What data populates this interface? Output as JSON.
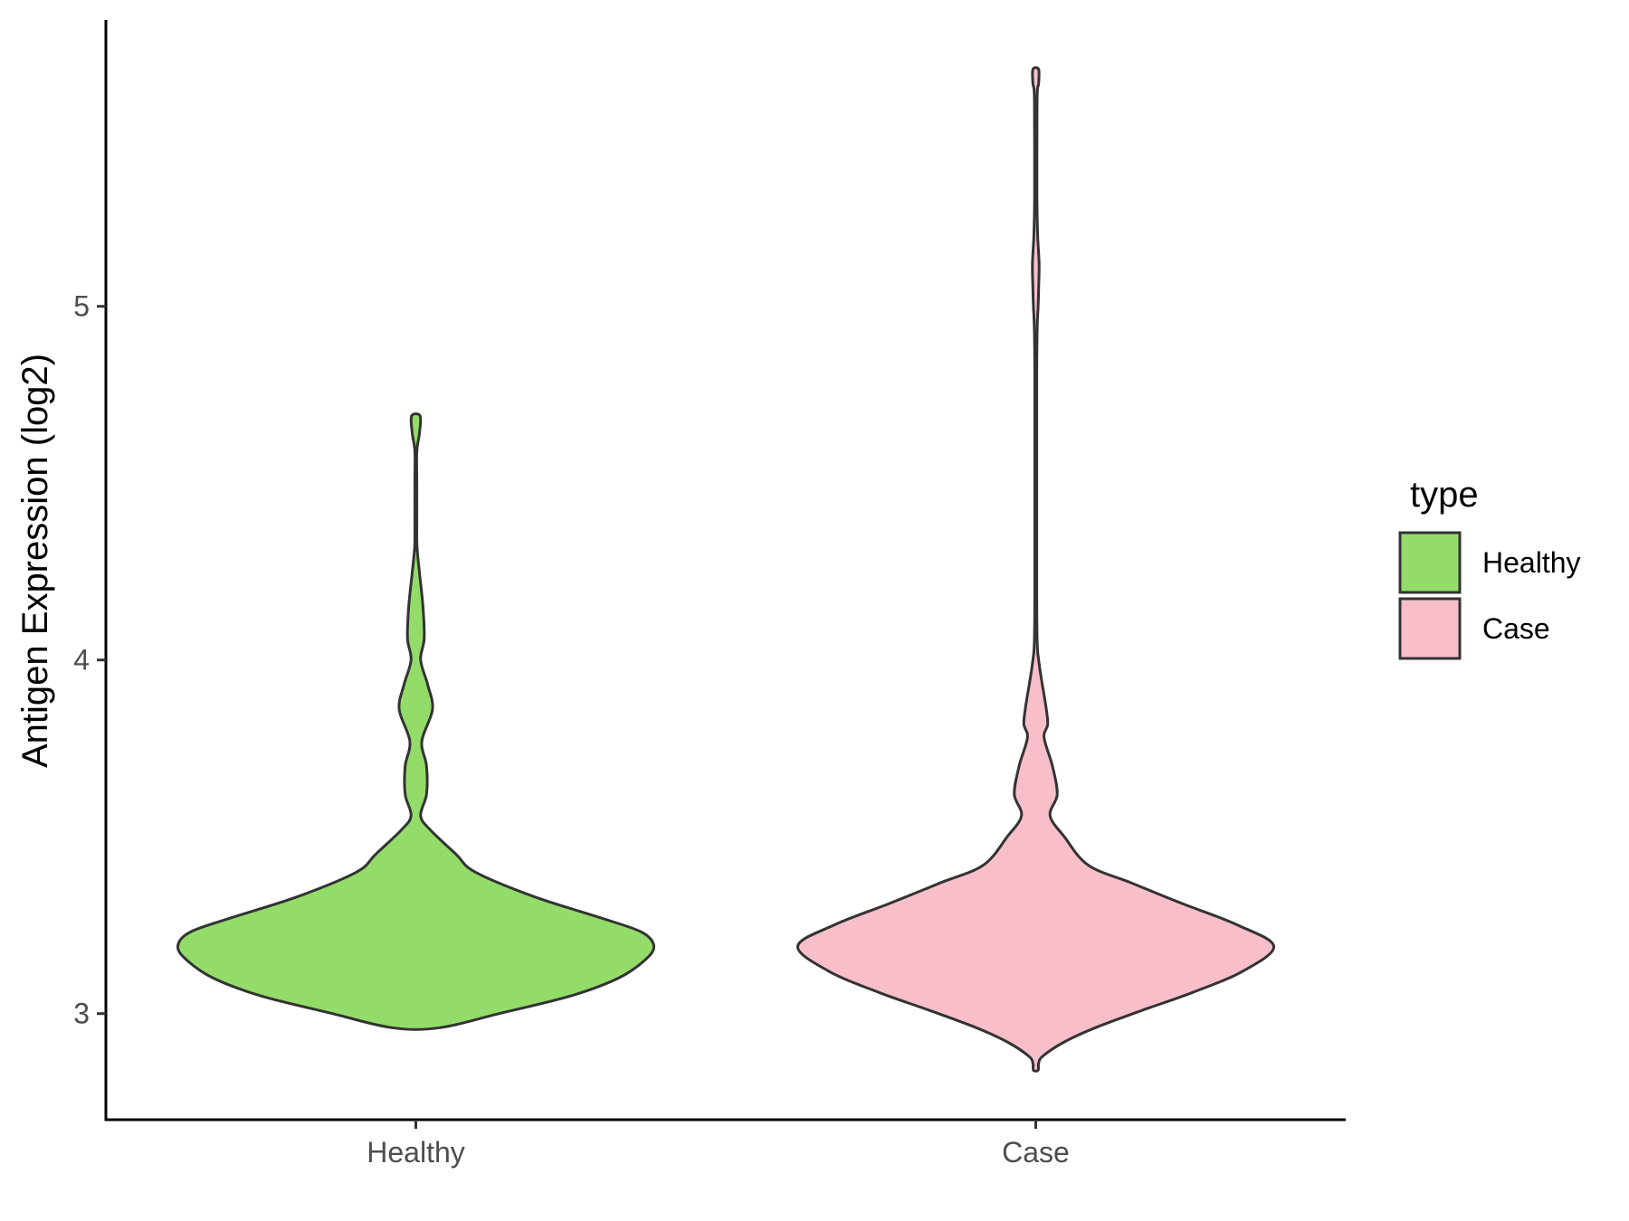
{
  "chart_data": {
    "type": "violin",
    "categories": [
      "Healthy",
      "Case"
    ],
    "ylabel": "Antigen Expression (log2)",
    "xlabel": "",
    "ylim": [
      2.7,
      5.81
    ],
    "yticks": [
      3,
      4,
      5
    ],
    "grid": false,
    "legend": {
      "title": "type",
      "position": "right",
      "entries": [
        "Healthy",
        "Case"
      ]
    },
    "series": [
      {
        "name": "Healthy",
        "color": "#93dc69",
        "range": [
          2.96,
          4.69
        ],
        "density_profile": [
          [
            2.96,
            0.1
          ],
          [
            3.0,
            0.35
          ],
          [
            3.05,
            0.65
          ],
          [
            3.1,
            0.85
          ],
          [
            3.15,
            0.96
          ],
          [
            3.19,
            1.0
          ],
          [
            3.23,
            0.95
          ],
          [
            3.27,
            0.78
          ],
          [
            3.33,
            0.5
          ],
          [
            3.4,
            0.25
          ],
          [
            3.45,
            0.17
          ],
          [
            3.52,
            0.06
          ],
          [
            3.56,
            0.02
          ],
          [
            3.62,
            0.045
          ],
          [
            3.7,
            0.045
          ],
          [
            3.77,
            0.025
          ],
          [
            3.86,
            0.07
          ],
          [
            3.93,
            0.05
          ],
          [
            4.0,
            0.02
          ],
          [
            4.06,
            0.035
          ],
          [
            4.15,
            0.03
          ],
          [
            4.25,
            0.015
          ],
          [
            4.32,
            0.005
          ],
          [
            4.4,
            0.004
          ],
          [
            4.5,
            0.004
          ],
          [
            4.59,
            0.004
          ],
          [
            4.64,
            0.015
          ],
          [
            4.69,
            0.018
          ]
        ]
      },
      {
        "name": "Case",
        "color": "#f8bfca",
        "range": [
          2.84,
          5.67
        ],
        "density_profile": [
          [
            2.84,
            0.01
          ],
          [
            2.86,
            0.012
          ],
          [
            2.88,
            0.03
          ],
          [
            2.92,
            0.12
          ],
          [
            2.96,
            0.25
          ],
          [
            3.01,
            0.45
          ],
          [
            3.06,
            0.66
          ],
          [
            3.12,
            0.87
          ],
          [
            3.19,
            1.0
          ],
          [
            3.25,
            0.85
          ],
          [
            3.31,
            0.62
          ],
          [
            3.37,
            0.4
          ],
          [
            3.42,
            0.22
          ],
          [
            3.5,
            0.12
          ],
          [
            3.56,
            0.06
          ],
          [
            3.62,
            0.09
          ],
          [
            3.7,
            0.07
          ],
          [
            3.78,
            0.035
          ],
          [
            3.82,
            0.05
          ],
          [
            3.88,
            0.04
          ],
          [
            3.94,
            0.025
          ],
          [
            4.0,
            0.012
          ],
          [
            4.05,
            0.006
          ],
          [
            4.2,
            0.004
          ],
          [
            4.5,
            0.004
          ],
          [
            4.8,
            0.004
          ],
          [
            4.94,
            0.006
          ],
          [
            5.0,
            0.01
          ],
          [
            5.05,
            0.012
          ],
          [
            5.12,
            0.014
          ],
          [
            5.2,
            0.008
          ],
          [
            5.3,
            0.005
          ],
          [
            5.45,
            0.005
          ],
          [
            5.6,
            0.006
          ],
          [
            5.63,
            0.012
          ],
          [
            5.67,
            0.012
          ]
        ]
      }
    ]
  }
}
